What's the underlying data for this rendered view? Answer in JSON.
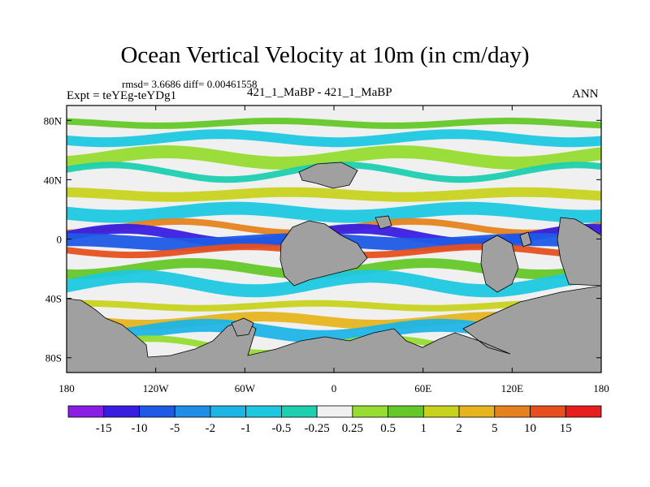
{
  "title": "Ocean Vertical Velocity at 10m (in cm/day)",
  "stats": "rmsd= 3.6686 diff= 0.00461558",
  "expt": "Expt = teYEg-teYDg1",
  "cases": "421_1_MaBP - 421_1_MaBP",
  "season": "ANN",
  "chart_data": {
    "type": "heatmap",
    "variable": "Ocean Vertical Velocity at 10m",
    "units": "cm/day",
    "x_ticks": [
      "180",
      "120W",
      "60W",
      "0",
      "60E",
      "120E",
      "180"
    ],
    "x_tick_values": [
      -180,
      -120,
      -60,
      0,
      60,
      120,
      180
    ],
    "y_ticks": [
      "80N",
      "40N",
      "0",
      "40S",
      "80S"
    ],
    "y_tick_values": [
      80,
      40,
      0,
      -40,
      -80
    ],
    "xlim": [
      -180,
      180
    ],
    "ylim": [
      -90,
      90
    ],
    "contour_levels": [
      "-15",
      "-10",
      "-5",
      "-2",
      "-1",
      "-0.5",
      "-0.25",
      "0.25",
      "0.5",
      "1",
      "2",
      "5",
      "10",
      "15"
    ],
    "colors": [
      "#8a1ee6",
      "#3a1ee0",
      "#1e5ae6",
      "#1e8ee6",
      "#1eb4e6",
      "#1ec8e0",
      "#1ecfb0",
      "#f0f0f0",
      "#96dc32",
      "#64c828",
      "#c8d21e",
      "#e6b41e",
      "#e6821e",
      "#e6501e",
      "#e61e1e"
    ],
    "land_color": "#a0a0a0",
    "bands": [
      {
        "lat": 78,
        "level": "0.5"
      },
      {
        "lat": 68,
        "level": "-0.5"
      },
      {
        "lat": 55,
        "level": "0.25"
      },
      {
        "lat": 45,
        "level": "-0.25"
      },
      {
        "lat": 30,
        "level": "1"
      },
      {
        "lat": 18,
        "level": "-0.5"
      },
      {
        "lat": 8,
        "level": "5"
      },
      {
        "lat": 2,
        "level": "-10"
      },
      {
        "lat": -2,
        "level": "-5"
      },
      {
        "lat": -8,
        "level": "10"
      },
      {
        "lat": -20,
        "level": "0.5"
      },
      {
        "lat": -30,
        "level": "-0.5"
      },
      {
        "lat": -45,
        "level": "1"
      },
      {
        "lat": -55,
        "level": "2"
      },
      {
        "lat": -62,
        "level": "-1"
      },
      {
        "lat": -72,
        "level": "0.25"
      }
    ]
  }
}
